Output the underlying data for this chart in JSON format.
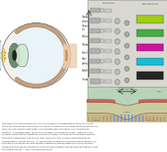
{
  "fig_width": 1.87,
  "fig_height": 1.7,
  "dpi": 100,
  "bg_color": "#ffffff",
  "caption_lines": [
    "(a gauche) Structure interne de l'oeil. La lumiere emanant d'un objet atteint l'oeil sous forme de",
    "rayons paralleles qui sont focalises par la cornee et le cristallin sur la fossette centrale de la retine, ou",
    "fovea. (en haut a droite) Schema des circuits fondamentaux de la retine. Une chaine de trois",
    "neurones - A) photorecepteurs, B) cellule horizontale, C) cellule ganglionnaire - constitue la voie",
    "verticale transmettant les informations visuelles au cerveau. La vision diurne est assuree par trois",
    "types de photorecepteurs a cones (vert, bleu, rouge) alors que la vision nocturne provient des",
    "photorecepteurs a batonnets (noir). (en bas a droite) Schema d'une coupe de la fovea humaine. Les",
    "vaisseaux et les couches cellulaires les plus superficielles sont deplacees de sorte que les rayons",
    "lumineux ne subissent qu'une diffusion minimale avant d'atteindre les segments externes des cones",
    "au centre de la fovea. © 2013, La Theorie Sensorielle."
  ],
  "sclera_color": "#f8f0e8",
  "vitreous_color": "#e8f4f8",
  "cornea_color": "#c8e0f0",
  "iris_color": "#6b8e6b",
  "pupil_color": "#222222",
  "lens_color": "#d0e8d0",
  "retina_color": "#c8a080",
  "nerve_color": "#e8c8a0",
  "dark_gray": "#555555",
  "ret_circuit_bg": "#d8d8d0",
  "fovea_bg": "#b8d4b8",
  "receptor_colors": [
    "#111111",
    "#00bbdd",
    "#cc0099",
    "#33aa33",
    "#99cc00"
  ],
  "fovea_tissue": "#c8b48a",
  "fovea_cap": "#cc4444",
  "cone_color": "#7799cc",
  "rod_color": "#bb9966"
}
